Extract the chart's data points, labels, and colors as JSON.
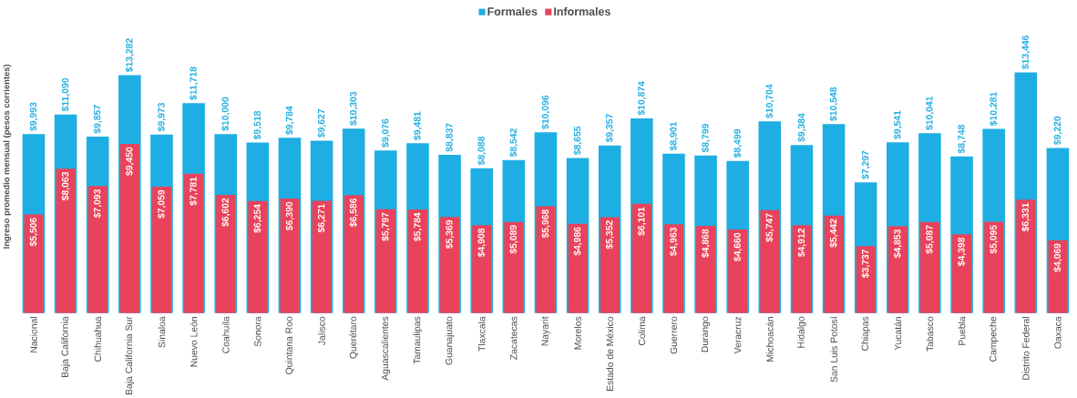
{
  "chart_data": {
    "type": "bar",
    "ylabel": "Ingreso promedio mensual (pesos corrientes)",
    "legend": "top",
    "categories": [
      "Nacional",
      "Baja California",
      "Chihuahua",
      "Baja California Sur",
      "Sinaloa",
      "Nuevo León",
      "Coahuila",
      "Sonora",
      "Quintana Roo",
      "Jalisco",
      "Querétaro",
      "Aguascalientes",
      "Tamaulipas",
      "Guanajuato",
      "Tlaxcala",
      "Zacatecas",
      "Nayarit",
      "Morelos",
      "Estado de México",
      "Colima",
      "Guerrero",
      "Durango",
      "Veracruz",
      "Michoacán",
      "Hidalgo",
      "San Luis Potosí",
      "Chiapas",
      "Yucatán",
      "Tabasco",
      "Puebla",
      "Campeche",
      "Distrito Federal",
      "Oaxaca"
    ],
    "series": [
      {
        "name": "Formales",
        "color": "#1eaee3",
        "values": [
          9993,
          11090,
          9857,
          13282,
          9973,
          11718,
          10000,
          9518,
          9784,
          9627,
          10303,
          9076,
          9481,
          8837,
          8088,
          8542,
          10096,
          8655,
          9357,
          10874,
          8901,
          8799,
          8499,
          10704,
          9384,
          10548,
          7297,
          9541,
          10041,
          8748,
          10281,
          13446,
          9220
        ],
        "value_labels": [
          "$9,993",
          "$11,090",
          "$9,857",
          "$13,282",
          "$9,973",
          "$11,718",
          "$10,000",
          "$9,518",
          "$9,784",
          "$9,627",
          "$10,303",
          "$9,076",
          "$9,481",
          "$8,837",
          "$8,088",
          "$8,542",
          "$10,096",
          "$8,655",
          "$9,357",
          "$10,874",
          "$8,901",
          "$8,799",
          "$8,499",
          "$10,704",
          "$9,384",
          "$10,548",
          "$7,297",
          "$9,541",
          "$10,041",
          "$8,748",
          "$10,281",
          "$13,446",
          "$9,220"
        ]
      },
      {
        "name": "Informales",
        "color": "#e8435a",
        "values": [
          5506,
          8063,
          7093,
          9450,
          7059,
          7781,
          6602,
          6254,
          6390,
          6271,
          6586,
          5797,
          5784,
          5369,
          4908,
          5089,
          5968,
          4986,
          5352,
          6101,
          4963,
          4868,
          4660,
          5747,
          4912,
          5442,
          3737,
          4853,
          5087,
          4398,
          5095,
          6331,
          4069
        ],
        "value_labels": [
          "$5,506",
          "$8,063",
          "$7,093",
          "$9,450",
          "$7,059",
          "$7,781",
          "$6,602",
          "$6,254",
          "$6,390",
          "$6,271",
          "$6,586",
          "$5,797",
          "$5,784",
          "$5,369",
          "$4,908",
          "$5,089",
          "$5,968",
          "$4,986",
          "$5,352",
          "$6,101",
          "$4,963",
          "$4,868",
          "$4,660",
          "$5,747",
          "$4,912",
          "$5,442",
          "$3,737",
          "$4,853",
          "$5,087",
          "$4,398",
          "$5,095",
          "$6,331",
          "$4,069"
        ]
      }
    ]
  }
}
